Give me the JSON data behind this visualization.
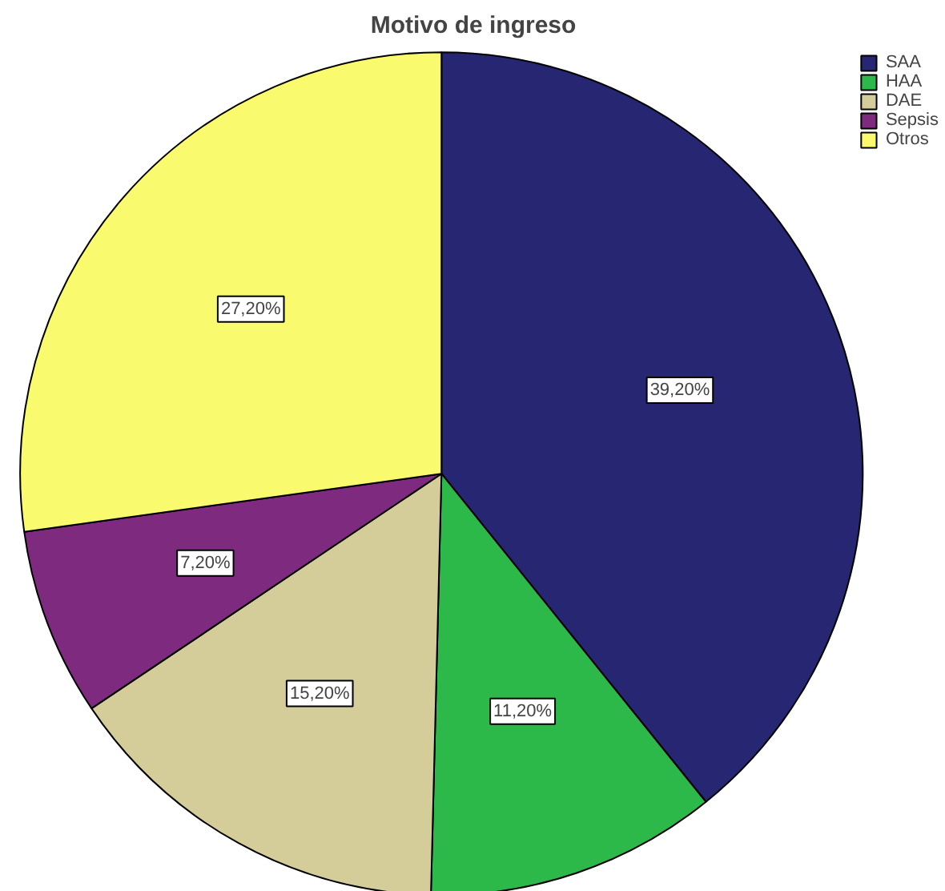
{
  "chart_data": {
    "type": "pie",
    "title": "Motivo de ingreso",
    "categories": [
      "SAA",
      "HAA",
      "DAE",
      "Sepsis",
      "Otros"
    ],
    "values": [
      39.2,
      11.2,
      15.2,
      7.2,
      27.2
    ],
    "value_labels": [
      "39,20%",
      "11,20%",
      "15,20%",
      "7,20%",
      "27,20%"
    ],
    "colors": [
      "#262672",
      "#2db84a",
      "#d4cc99",
      "#7e2a7e",
      "#fafa6e"
    ],
    "legend": "top right"
  }
}
